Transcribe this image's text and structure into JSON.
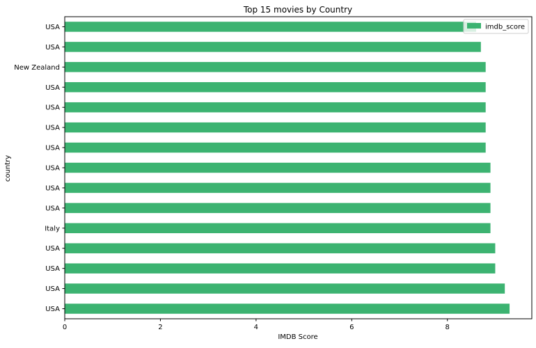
{
  "chart_data": {
    "type": "bar",
    "orientation": "horizontal",
    "title": "Top 15 movies by Country",
    "xlabel": "IMDB Score",
    "ylabel": "country",
    "categories": [
      "USA",
      "USA",
      "New Zealand",
      "USA",
      "USA",
      "USA",
      "USA",
      "USA",
      "USA",
      "USA",
      "Italy",
      "USA",
      "USA",
      "USA",
      "USA"
    ],
    "series": [
      {
        "name": "imdb_score",
        "color": "#3cb371",
        "values": [
          8.6,
          8.7,
          8.8,
          8.8,
          8.8,
          8.8,
          8.8,
          8.9,
          8.9,
          8.9,
          8.9,
          9.0,
          9.0,
          9.2,
          9.3
        ]
      }
    ],
    "xlim": [
      0,
      9.765
    ],
    "xticks": [
      0,
      2,
      4,
      6,
      8
    ],
    "grid": false,
    "legend_position": "upper right"
  }
}
